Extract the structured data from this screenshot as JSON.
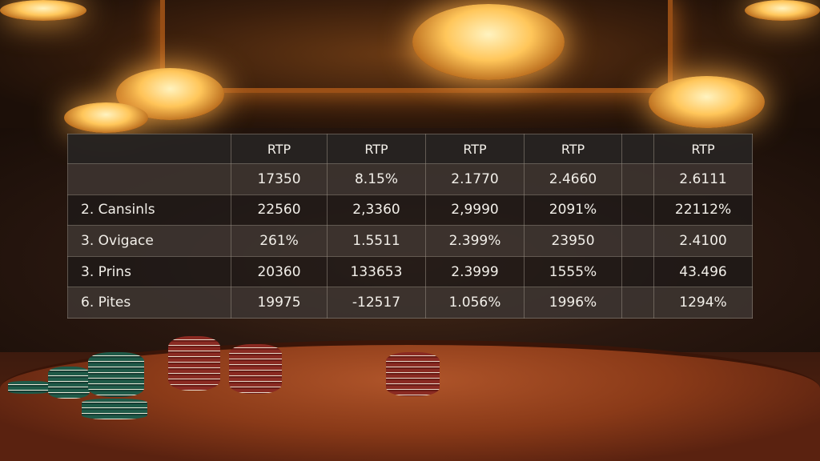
{
  "table": {
    "headers": [
      "",
      "RTP",
      "RTP",
      "RTP",
      "RTP",
      "",
      "RTP"
    ],
    "rows": [
      {
        "label": "",
        "values": [
          "17350",
          "8.15%",
          "2.1770",
          "2.4660",
          "",
          "2.6111"
        ]
      },
      {
        "label": "2. Cansinls",
        "values": [
          "22560",
          "2,3360",
          "2,9990",
          "2091%",
          "",
          "22112%"
        ]
      },
      {
        "label": "3. Ovigace",
        "values": [
          "261%",
          "1.5511",
          "2.399%",
          "23950",
          "",
          "2.4100"
        ]
      },
      {
        "label": "3. Prins",
        "values": [
          "20360",
          "133653",
          "2.3999",
          "1555%",
          "",
          "43.496"
        ]
      },
      {
        "label": "6. Pites",
        "values": [
          "19975",
          "-12517",
          "1.056%",
          "1996%",
          "",
          "1294%"
        ]
      }
    ]
  }
}
